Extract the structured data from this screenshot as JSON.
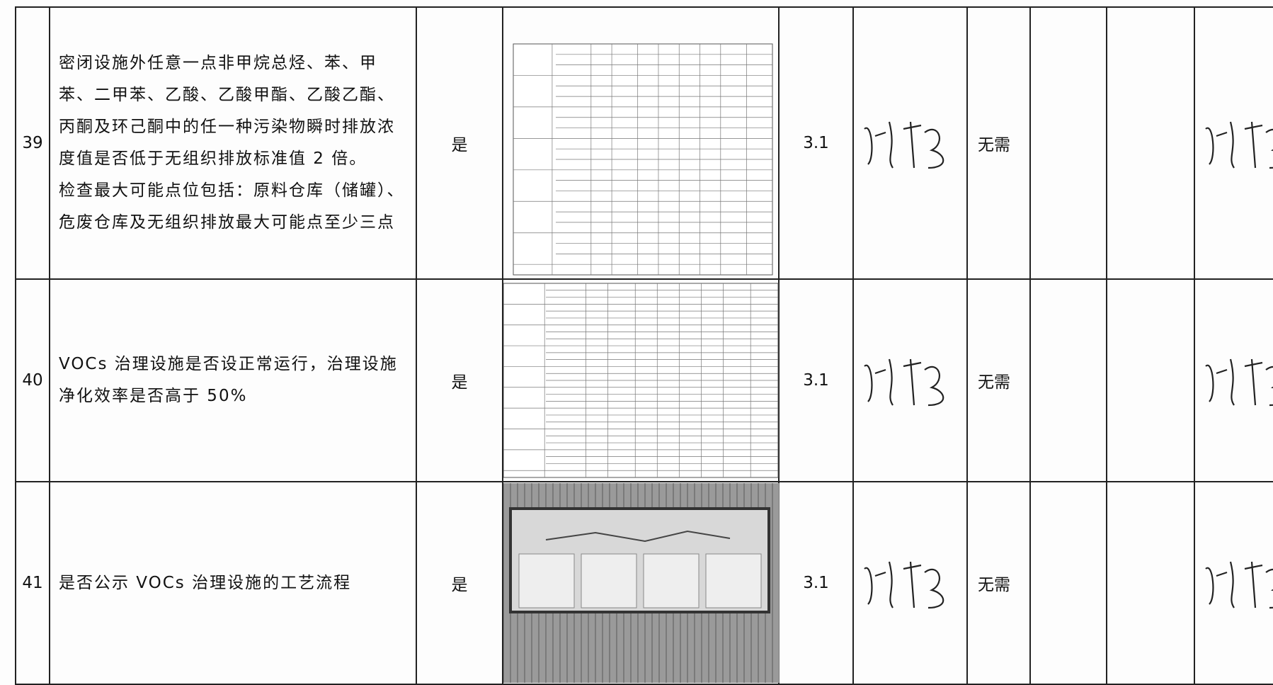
{
  "table": {
    "rows": [
      {
        "no": "39",
        "item": [
          "密闭设施外任意一点非甲烷总烃、苯、甲苯、二甲苯、乙酸、乙酸甲酯、乙酸乙酯、丙酮及环己酮中的任一种污染物瞬时排放浓度值是否低于无组织排放标准值 2 倍。",
          "检查最大可能点位包括：原料仓库（储罐）、危废仓库及无组织排放最大可能点至少三点"
        ],
        "result": "是",
        "clause": "3.1",
        "rectify": "无需"
      },
      {
        "no": "40",
        "item": [
          "VOCs 治理设施是否设正常运行，治理设施净化效率是否高于 50%"
        ],
        "result": "是",
        "clause": "3.1",
        "rectify": "无需"
      },
      {
        "no": "41",
        "item": [
          "是否公示 VOCs 治理设施的工艺流程"
        ],
        "result": "是",
        "clause": "3.1",
        "rectify": "无需"
      }
    ]
  }
}
